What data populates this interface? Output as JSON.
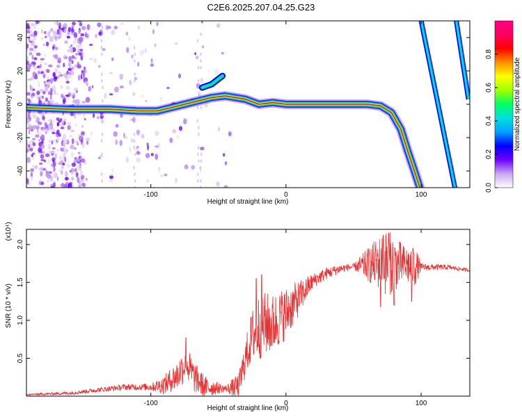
{
  "title": "C2E6.2025.207.04.25.G23",
  "chart_data": [
    {
      "type": "heatmap",
      "xlabel": "Height of straight line (km)",
      "ylabel": "Frequency (Hz)",
      "xlim": [
        -192,
        136
      ],
      "ylim": [
        -50,
        50
      ],
      "x_ticks": [
        "-100",
        "0",
        "100"
      ],
      "y_ticks": [
        "-40",
        "-20",
        "0",
        "20",
        "40"
      ],
      "colorbar": {
        "label": "Normalized spectral amplitude",
        "range": [
          0,
          1
        ],
        "ticks": [
          "0.0",
          "0.2",
          "0.4",
          "0.6",
          "0.8"
        ],
        "colors": [
          "#ffffff",
          "#c9a6f2",
          "#7000ff",
          "#0000ff",
          "#00a0ff",
          "#00e0e0",
          "#00ff60",
          "#a0ff00",
          "#ffff00",
          "#ff9000",
          "#ff0000",
          "#ff0060",
          "#ff0080"
        ]
      },
      "ridge": [
        {
          "x": -192,
          "y": -2
        },
        {
          "x": -160,
          "y": -3
        },
        {
          "x": -130,
          "y": -3
        },
        {
          "x": -110,
          "y": -4
        },
        {
          "x": -95,
          "y": -4
        },
        {
          "x": -80,
          "y": -1
        },
        {
          "x": -65,
          "y": 2
        },
        {
          "x": -55,
          "y": 4
        },
        {
          "x": -45,
          "y": 5
        },
        {
          "x": -30,
          "y": 3
        },
        {
          "x": -20,
          "y": 0
        },
        {
          "x": -10,
          "y": 1
        },
        {
          "x": 0,
          "y": 0
        },
        {
          "x": 30,
          "y": 0
        },
        {
          "x": 60,
          "y": 0
        },
        {
          "x": 70,
          "y": -1
        },
        {
          "x": 78,
          "y": -5
        },
        {
          "x": 85,
          "y": -15
        },
        {
          "x": 90,
          "y": -28
        },
        {
          "x": 95,
          "y": -40
        },
        {
          "x": 99,
          "y": -50
        }
      ],
      "upper_branch": [
        {
          "x": -62,
          "y": 10
        },
        {
          "x": -55,
          "y": 12
        },
        {
          "x": -47,
          "y": 17
        }
      ],
      "aliases": [
        [
          {
            "x": 100,
            "y": 50
          },
          {
            "x": 125,
            "y": -50
          }
        ],
        [
          {
            "x": 126,
            "y": 50
          },
          {
            "x": 135,
            "y": 3
          }
        ]
      ]
    },
    {
      "type": "line",
      "xlabel": "Height of straight line (km)",
      "ylabel": "SNR (10 * v/v)",
      "y_multiplier": "(x10⁴)",
      "xlim": [
        -192,
        136
      ],
      "ylim": [
        0,
        2.2
      ],
      "x_ticks": [
        "-100",
        "0",
        "100"
      ],
      "y_ticks": [
        "0.5",
        "1.0",
        "1.5",
        "2.0"
      ],
      "color": "#e83030",
      "envelope": [
        {
          "x": -192,
          "y": 0.02
        },
        {
          "x": -160,
          "y": 0.04
        },
        {
          "x": -140,
          "y": 0.08
        },
        {
          "x": -120,
          "y": 0.12
        },
        {
          "x": -100,
          "y": 0.12
        },
        {
          "x": -90,
          "y": 0.15
        },
        {
          "x": -80,
          "y": 0.28
        },
        {
          "x": -74,
          "y": 0.45
        },
        {
          "x": -68,
          "y": 0.25
        },
        {
          "x": -60,
          "y": 0.12
        },
        {
          "x": -45,
          "y": 0.1
        },
        {
          "x": -35,
          "y": 0.12
        },
        {
          "x": -30,
          "y": 0.5
        },
        {
          "x": -25,
          "y": 0.8
        },
        {
          "x": -18,
          "y": 0.95
        },
        {
          "x": -10,
          "y": 0.95
        },
        {
          "x": 0,
          "y": 1.1
        },
        {
          "x": 10,
          "y": 1.3
        },
        {
          "x": 20,
          "y": 1.52
        },
        {
          "x": 30,
          "y": 1.62
        },
        {
          "x": 40,
          "y": 1.68
        },
        {
          "x": 55,
          "y": 1.72
        },
        {
          "x": 70,
          "y": 1.76
        },
        {
          "x": 85,
          "y": 1.74
        },
        {
          "x": 100,
          "y": 1.7
        },
        {
          "x": 120,
          "y": 1.7
        },
        {
          "x": 136,
          "y": 1.66
        }
      ],
      "noise": [
        {
          "x": -192,
          "y": 0.01
        },
        {
          "x": -140,
          "y": 0.03
        },
        {
          "x": -100,
          "y": 0.05
        },
        {
          "x": -74,
          "y": 0.25
        },
        {
          "x": -45,
          "y": 0.04
        },
        {
          "x": -30,
          "y": 0.25
        },
        {
          "x": -20,
          "y": 0.45
        },
        {
          "x": 0,
          "y": 0.35
        },
        {
          "x": 20,
          "y": 0.1
        },
        {
          "x": 50,
          "y": 0.04
        },
        {
          "x": 62,
          "y": 0.25
        },
        {
          "x": 75,
          "y": 0.45
        },
        {
          "x": 88,
          "y": 0.25
        },
        {
          "x": 95,
          "y": 0.3
        },
        {
          "x": 100,
          "y": 0.05
        },
        {
          "x": 136,
          "y": 0.02
        }
      ],
      "spikes": [
        {
          "x": 70,
          "y": 1.18
        },
        {
          "x": 72,
          "y": 2.12
        },
        {
          "x": 76,
          "y": 2.15
        },
        {
          "x": 80,
          "y": 1.2
        },
        {
          "x": 93,
          "y": 1.25
        },
        {
          "x": 94,
          "y": 1.95
        },
        {
          "x": -74,
          "y": 0.77
        },
        {
          "x": -22,
          "y": 1.55
        },
        {
          "x": -18,
          "y": 1.6
        }
      ]
    }
  ]
}
